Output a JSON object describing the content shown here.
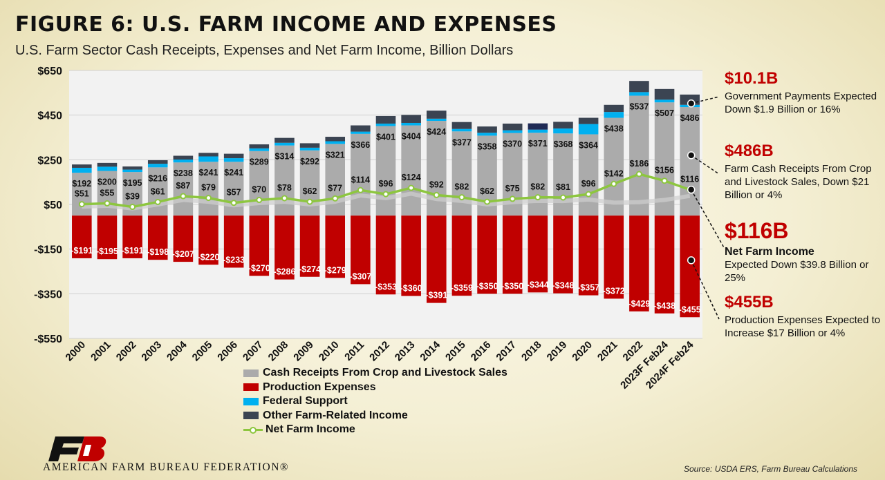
{
  "header": {
    "title": "FIGURE 6: U.S. FARM INCOME AND EXPENSES",
    "subtitle": "U.S. Farm Sector Cash Receipts, Expenses and Net Farm Income, Billion Dollars"
  },
  "chart_data": {
    "type": "bar",
    "categories": [
      "2000",
      "2001",
      "2002",
      "2003",
      "2004",
      "2005",
      "2006",
      "2007",
      "2008",
      "2009",
      "2010",
      "2011",
      "2012",
      "2013",
      "2014",
      "2015",
      "2016",
      "2017",
      "2018",
      "2019",
      "2020",
      "2021",
      "2022",
      "2023F Feb24",
      "2024F Feb24"
    ],
    "y_ticks": [
      650,
      450,
      250,
      50,
      -150,
      -350,
      -550
    ],
    "y_tick_labels": [
      "$650",
      "$450",
      "$250",
      "$50",
      "-$150",
      "-$350",
      "-$550"
    ],
    "ylim": [
      -550,
      650
    ],
    "grid": true,
    "legend_position": "bottom",
    "series": [
      {
        "name": "Cash Receipts From Crop and Livestock Sales",
        "kind": "bar",
        "color": "#ababab",
        "values": [
          192,
          200,
          195,
          216,
          238,
          241,
          241,
          289,
          314,
          292,
          321,
          366,
          401,
          404,
          424,
          377,
          358,
          370,
          371,
          368,
          364,
          438,
          537,
          507,
          486
        ]
      },
      {
        "name": "Production Expenses",
        "kind": "bar",
        "color": "#c00000",
        "values": [
          -191,
          -195,
          -191,
          -198,
          -207,
          -220,
          -233,
          -270,
          -286,
          -274,
          -279,
          -307,
          -353,
          -360,
          -391,
          -359,
          -350,
          -350,
          -344,
          -348,
          -357,
          -372,
          -429,
          -438,
          -455
        ]
      },
      {
        "name": "Federal Support",
        "kind": "bar",
        "color": "#00b0f0",
        "values": [
          22,
          19,
          11,
          16,
          13,
          24,
          16,
          12,
          12,
          12,
          12,
          10,
          11,
          11,
          10,
          11,
          13,
          12,
          14,
          22,
          46,
          26,
          16,
          12,
          10
        ]
      },
      {
        "name": "Other Farm-Related Income",
        "kind": "bar",
        "color": "#3b4452",
        "values": [
          15,
          17,
          14,
          16,
          17,
          16,
          20,
          18,
          22,
          20,
          20,
          28,
          34,
          36,
          36,
          31,
          28,
          30,
          28,
          30,
          28,
          32,
          50,
          48,
          46
        ]
      },
      {
        "name": "Net Farm Income",
        "kind": "line",
        "color": "#8dc63f",
        "values": [
          51,
          55,
          39,
          61,
          87,
          79,
          57,
          70,
          78,
          62,
          77,
          114,
          96,
          124,
          92,
          82,
          62,
          75,
          82,
          81,
          96,
          142,
          186,
          156,
          116
        ]
      }
    ],
    "shadow_values": [
      40,
      44,
      32,
      50,
      70,
      62,
      46,
      56,
      62,
      50,
      62,
      90,
      78,
      98,
      74,
      66,
      50,
      60,
      66,
      65,
      72,
      58,
      60,
      70,
      88
    ]
  },
  "annotations": [
    {
      "big": "$10.1B",
      "head": "",
      "text": "Government Payments Expected Down $1.9 Billion or 16%"
    },
    {
      "big": "$486B",
      "head": "",
      "text": "Farm Cash Receipts From Crop and Livestock Sales, Down $21 Billion or 4%"
    },
    {
      "big": "$116B",
      "head": "Net Farm Income",
      "text": "Expected Down $39.8 Billion or 25%"
    },
    {
      "big": "$455B",
      "head": "",
      "text": "Production Expenses Expected to Increase $17 Billion or 4%"
    }
  ],
  "legend": [
    {
      "label": "Cash Receipts From Crop and Livestock Sales",
      "color": "#ababab",
      "kind": "box"
    },
    {
      "label": "Production Expenses",
      "color": "#c00000",
      "kind": "box"
    },
    {
      "label": "Federal Support",
      "color": "#00b0f0",
      "kind": "box"
    },
    {
      "label": "Other Farm-Related Income",
      "color": "#3b4452",
      "kind": "box"
    },
    {
      "label": "Net Farm Income",
      "color": "#8dc63f",
      "kind": "line"
    }
  ],
  "footer": {
    "org": "AMERICAN FARM BUREAU FEDERATION®",
    "source": "Source:  USDA ERS, Farm Bureau Calculations"
  }
}
